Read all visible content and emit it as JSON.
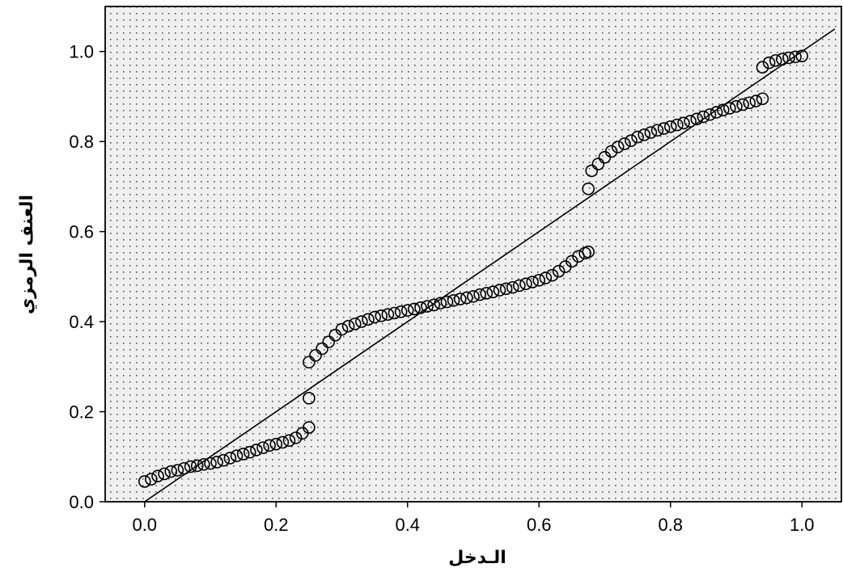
{
  "chart_data": {
    "type": "scatter",
    "title": "",
    "xlabel": "الـدخل",
    "ylabel": "العنف الرمزي",
    "xlim": [
      -0.06,
      1.06
    ],
    "ylim": [
      0.0,
      1.1
    ],
    "x_ticks": [
      "0.0",
      "0.2",
      "0.4",
      "0.6",
      "0.8",
      "1.0"
    ],
    "y_ticks": [
      "0.0",
      "0.2",
      "0.4",
      "0.6",
      "0.8",
      "1.0"
    ],
    "grid": false,
    "background": "dotted light gray",
    "marker": "open-circle",
    "reference_line": {
      "x": [
        0.0,
        1.05
      ],
      "y": [
        0.0,
        1.05
      ]
    },
    "series": [
      {
        "x": [
          0.0,
          0.01,
          0.02,
          0.03,
          0.04,
          0.05,
          0.06,
          0.07,
          0.08,
          0.09,
          0.1,
          0.11,
          0.12,
          0.13,
          0.14,
          0.15,
          0.16,
          0.17,
          0.18,
          0.19,
          0.2,
          0.21,
          0.22,
          0.23,
          0.24,
          0.25,
          0.25,
          0.25,
          0.26,
          0.27,
          0.28,
          0.29,
          0.3,
          0.31,
          0.32,
          0.33,
          0.34,
          0.35,
          0.36,
          0.37,
          0.38,
          0.39,
          0.4,
          0.41,
          0.42,
          0.43,
          0.44,
          0.45,
          0.46,
          0.47,
          0.48,
          0.49,
          0.5,
          0.51,
          0.52,
          0.53,
          0.54,
          0.55,
          0.56,
          0.57,
          0.58,
          0.59,
          0.6,
          0.61,
          0.62,
          0.63,
          0.64,
          0.65,
          0.66,
          0.67,
          0.675,
          0.675,
          0.68,
          0.69,
          0.7,
          0.71,
          0.72,
          0.73,
          0.74,
          0.75,
          0.76,
          0.77,
          0.78,
          0.79,
          0.8,
          0.81,
          0.82,
          0.83,
          0.84,
          0.85,
          0.86,
          0.87,
          0.88,
          0.89,
          0.9,
          0.91,
          0.92,
          0.93,
          0.94,
          0.94,
          0.95,
          0.96,
          0.97,
          0.98,
          0.99,
          1.0
        ],
        "y": [
          0.045,
          0.05,
          0.057,
          0.062,
          0.067,
          0.07,
          0.074,
          0.078,
          0.08,
          0.083,
          0.085,
          0.088,
          0.092,
          0.097,
          0.102,
          0.106,
          0.11,
          0.115,
          0.12,
          0.125,
          0.128,
          0.132,
          0.136,
          0.142,
          0.152,
          0.165,
          0.23,
          0.31,
          0.325,
          0.34,
          0.355,
          0.37,
          0.383,
          0.39,
          0.395,
          0.4,
          0.405,
          0.41,
          0.413,
          0.416,
          0.419,
          0.422,
          0.425,
          0.428,
          0.431,
          0.434,
          0.437,
          0.441,
          0.444,
          0.447,
          0.45,
          0.453,
          0.456,
          0.46,
          0.463,
          0.466,
          0.47,
          0.473,
          0.476,
          0.48,
          0.484,
          0.488,
          0.492,
          0.497,
          0.503,
          0.512,
          0.522,
          0.534,
          0.545,
          0.552,
          0.555,
          0.695,
          0.735,
          0.75,
          0.765,
          0.778,
          0.788,
          0.795,
          0.802,
          0.81,
          0.815,
          0.82,
          0.825,
          0.829,
          0.833,
          0.837,
          0.841,
          0.845,
          0.85,
          0.855,
          0.86,
          0.865,
          0.87,
          0.874,
          0.878,
          0.882,
          0.886,
          0.89,
          0.895,
          0.965,
          0.975,
          0.98,
          0.983,
          0.986,
          0.988,
          0.99
        ]
      }
    ]
  }
}
